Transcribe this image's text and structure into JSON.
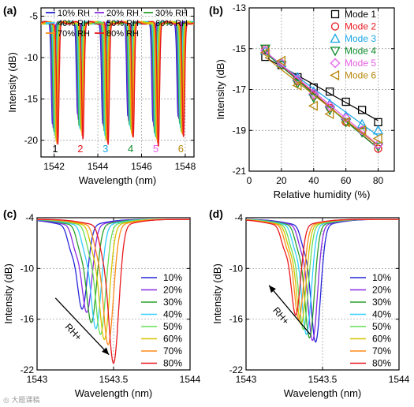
{
  "watermark": "◎ 大题课稿",
  "chart_data": [
    {
      "id": "a",
      "panel_label": "(a)",
      "type": "line",
      "xlabel": "Wavelength (nm)",
      "ylabel": "Intensity (dB)",
      "xlim": [
        1541.4,
        1548.4
      ],
      "ylim": [
        -22,
        -4
      ],
      "xticks": [
        1542,
        1544,
        1546,
        1548
      ],
      "xtick_labels": [
        "1542",
        "1544",
        "1546",
        "1548"
      ],
      "yticks": [
        -5,
        -10,
        -15,
        -20
      ],
      "ytick_labels": [
        "-5",
        "-10",
        "-15",
        "-20"
      ],
      "grid": true,
      "legend": "top, 3 columns",
      "baseline": -5.8,
      "dips": [
        {
          "label": "1",
          "center": 1542.05,
          "color": "#000000"
        },
        {
          "label": "2",
          "center": 1543.2,
          "color": "#e8191f"
        },
        {
          "label": "3",
          "center": 1544.35,
          "color": "#1aa6e6"
        },
        {
          "label": "4",
          "center": 1545.5,
          "color": "#0c8b2a"
        },
        {
          "label": "5",
          "center": 1546.65,
          "color": "#e65ce6"
        },
        {
          "label": "6",
          "center": 1547.8,
          "color": "#b8860b"
        }
      ],
      "series": [
        {
          "name": "10% RH",
          "color": "#2626d9",
          "depth": -17.5,
          "shift": -0.25
        },
        {
          "name": "20% RH",
          "color": "#8a2be2",
          "depth": -18.0,
          "shift": -0.18
        },
        {
          "name": "30% RH",
          "color": "#2ca02c",
          "depth": -18.6,
          "shift": -0.11
        },
        {
          "name": "40% RH",
          "color": "#33ccff",
          "depth": -19.0,
          "shift": -0.04
        },
        {
          "name": "50% RH",
          "color": "#66dd55",
          "depth": -19.3,
          "shift": 0.03
        },
        {
          "name": "60% RH",
          "color": "#d4c400",
          "depth": -19.6,
          "shift": 0.1
        },
        {
          "name": "70% RH",
          "color": "#ff8c1a",
          "depth": -19.9,
          "shift": 0.17
        },
        {
          "name": "80% RH",
          "color": "#e8191f",
          "depth": -20.2,
          "shift": 0.24
        }
      ]
    },
    {
      "id": "b",
      "panel_label": "(b)",
      "type": "scatter",
      "xlabel": "Relative humidity (%)",
      "ylabel": "Intensity (dB)",
      "xlim": [
        0,
        90
      ],
      "ylim": [
        -21,
        -13
      ],
      "xticks": [
        0,
        20,
        40,
        60,
        80
      ],
      "xtick_labels": [
        "0",
        "20",
        "40",
        "60",
        "80"
      ],
      "yticks": [
        -13,
        -15,
        -17,
        -19,
        -21
      ],
      "ytick_labels": [
        "-13",
        "-15",
        "-17",
        "-19",
        "-21"
      ],
      "grid": true,
      "legend": "top-right",
      "x": [
        10,
        20,
        30,
        40,
        50,
        60,
        70,
        80
      ],
      "series": [
        {
          "name": "Mode 1",
          "color": "#000000",
          "marker": "square",
          "values": [
            -15.4,
            -15.8,
            -16.4,
            -16.9,
            -17.1,
            -17.6,
            -18.0,
            -18.6
          ]
        },
        {
          "name": "Mode 2",
          "color": "#e8191f",
          "marker": "circle",
          "values": [
            -15.0,
            -15.8,
            -16.6,
            -17.3,
            -17.9,
            -18.6,
            -19.0,
            -19.9
          ]
        },
        {
          "name": "Mode 3",
          "color": "#1aa6e6",
          "marker": "triangle-up",
          "values": [
            -15.1,
            -15.7,
            -16.4,
            -17.1,
            -17.7,
            -18.3,
            -18.7,
            -19.0
          ]
        },
        {
          "name": "Mode 4",
          "color": "#0c8b2a",
          "marker": "triangle-down",
          "values": [
            -15.0,
            -15.8,
            -16.7,
            -17.4,
            -18.0,
            -18.6,
            -19.1,
            -19.8
          ]
        },
        {
          "name": "Mode 5",
          "color": "#e65ce6",
          "marker": "diamond",
          "values": [
            -15.1,
            -15.7,
            -16.5,
            -17.2,
            -17.8,
            -18.4,
            -19.0,
            -19.7
          ]
        },
        {
          "name": "Mode 6",
          "color": "#b8860b",
          "marker": "triangle-left",
          "values": [
            -15.2,
            -15.6,
            -16.8,
            -17.8,
            -18.2,
            -18.6,
            -19.0,
            -19.4
          ]
        }
      ]
    },
    {
      "id": "c",
      "panel_label": "(c)",
      "type": "line",
      "xlabel": "Wavelength (nm)",
      "ylabel": "Intensity (dB)",
      "xlim": [
        1543,
        1544
      ],
      "ylim": [
        -22,
        -4
      ],
      "xticks": [
        1543,
        1543.5,
        1544
      ],
      "xtick_labels": [
        "1543",
        "1543.5",
        "1544"
      ],
      "yticks": [
        -4,
        -10,
        -16,
        -22
      ],
      "ytick_labels": [
        "-4",
        "-10",
        "-16",
        "-22"
      ],
      "grid": true,
      "legend": "right",
      "baseline": -4.2,
      "dip_width": 0.048,
      "shoulder": 0.075,
      "annotation": "RH+",
      "arrow": {
        "from": [
          1543.12,
          -13.5
        ],
        "to": [
          1543.47,
          -20.2
        ]
      },
      "series": [
        {
          "name": "10%",
          "color": "#2626d9",
          "center": 1543.295,
          "depth": -14.0
        },
        {
          "name": "20%",
          "color": "#8a2be2",
          "center": 1543.325,
          "depth": -14.4
        },
        {
          "name": "30%",
          "color": "#2ca02c",
          "center": 1543.355,
          "depth": -15.6
        },
        {
          "name": "40%",
          "color": "#33ccff",
          "center": 1543.385,
          "depth": -16.3
        },
        {
          "name": "50%",
          "color": "#66dd55",
          "center": 1543.415,
          "depth": -17.0
        },
        {
          "name": "60%",
          "color": "#d4c400",
          "center": 1543.44,
          "depth": -17.6
        },
        {
          "name": "70%",
          "color": "#ff8c1a",
          "center": 1543.465,
          "depth": -18.2
        },
        {
          "name": "80%",
          "color": "#e8191f",
          "center": 1543.5,
          "depth": -20.4
        }
      ]
    },
    {
      "id": "d",
      "panel_label": "(d)",
      "type": "line",
      "xlabel": "Wavelength (nm)",
      "ylabel": "Intensity (dB)",
      "xlim": [
        1543,
        1544
      ],
      "ylim": [
        -22,
        -4
      ],
      "xticks": [
        1543,
        1543.5,
        1544
      ],
      "xtick_labels": [
        "1543",
        "1543.5",
        "1544"
      ],
      "yticks": [
        -4,
        -10,
        -16,
        -22
      ],
      "ytick_labels": [
        "-4",
        "-10",
        "-16",
        "-22"
      ],
      "grid": true,
      "legend": "right",
      "baseline": -4.2,
      "dip_width": 0.045,
      "shoulder": 0.075,
      "annotation": "RH+",
      "arrow": {
        "from": [
          1543.42,
          -17.8
        ],
        "to": [
          1543.15,
          -12.0
        ]
      },
      "series": [
        {
          "name": "10%",
          "color": "#2626d9",
          "center": 1543.455,
          "depth": -17.9
        },
        {
          "name": "20%",
          "color": "#8a2be2",
          "center": 1543.435,
          "depth": -17.7
        },
        {
          "name": "30%",
          "color": "#2ca02c",
          "center": 1543.415,
          "depth": -17.4
        },
        {
          "name": "40%",
          "color": "#33ccff",
          "center": 1543.395,
          "depth": -17.0
        },
        {
          "name": "50%",
          "color": "#66dd55",
          "center": 1543.375,
          "depth": -16.4
        },
        {
          "name": "60%",
          "color": "#d4c400",
          "center": 1543.36,
          "depth": -15.8
        },
        {
          "name": "70%",
          "color": "#ff8c1a",
          "center": 1543.345,
          "depth": -15.2
        },
        {
          "name": "80%",
          "color": "#e8191f",
          "center": 1543.325,
          "depth": -14.7
        }
      ]
    }
  ]
}
